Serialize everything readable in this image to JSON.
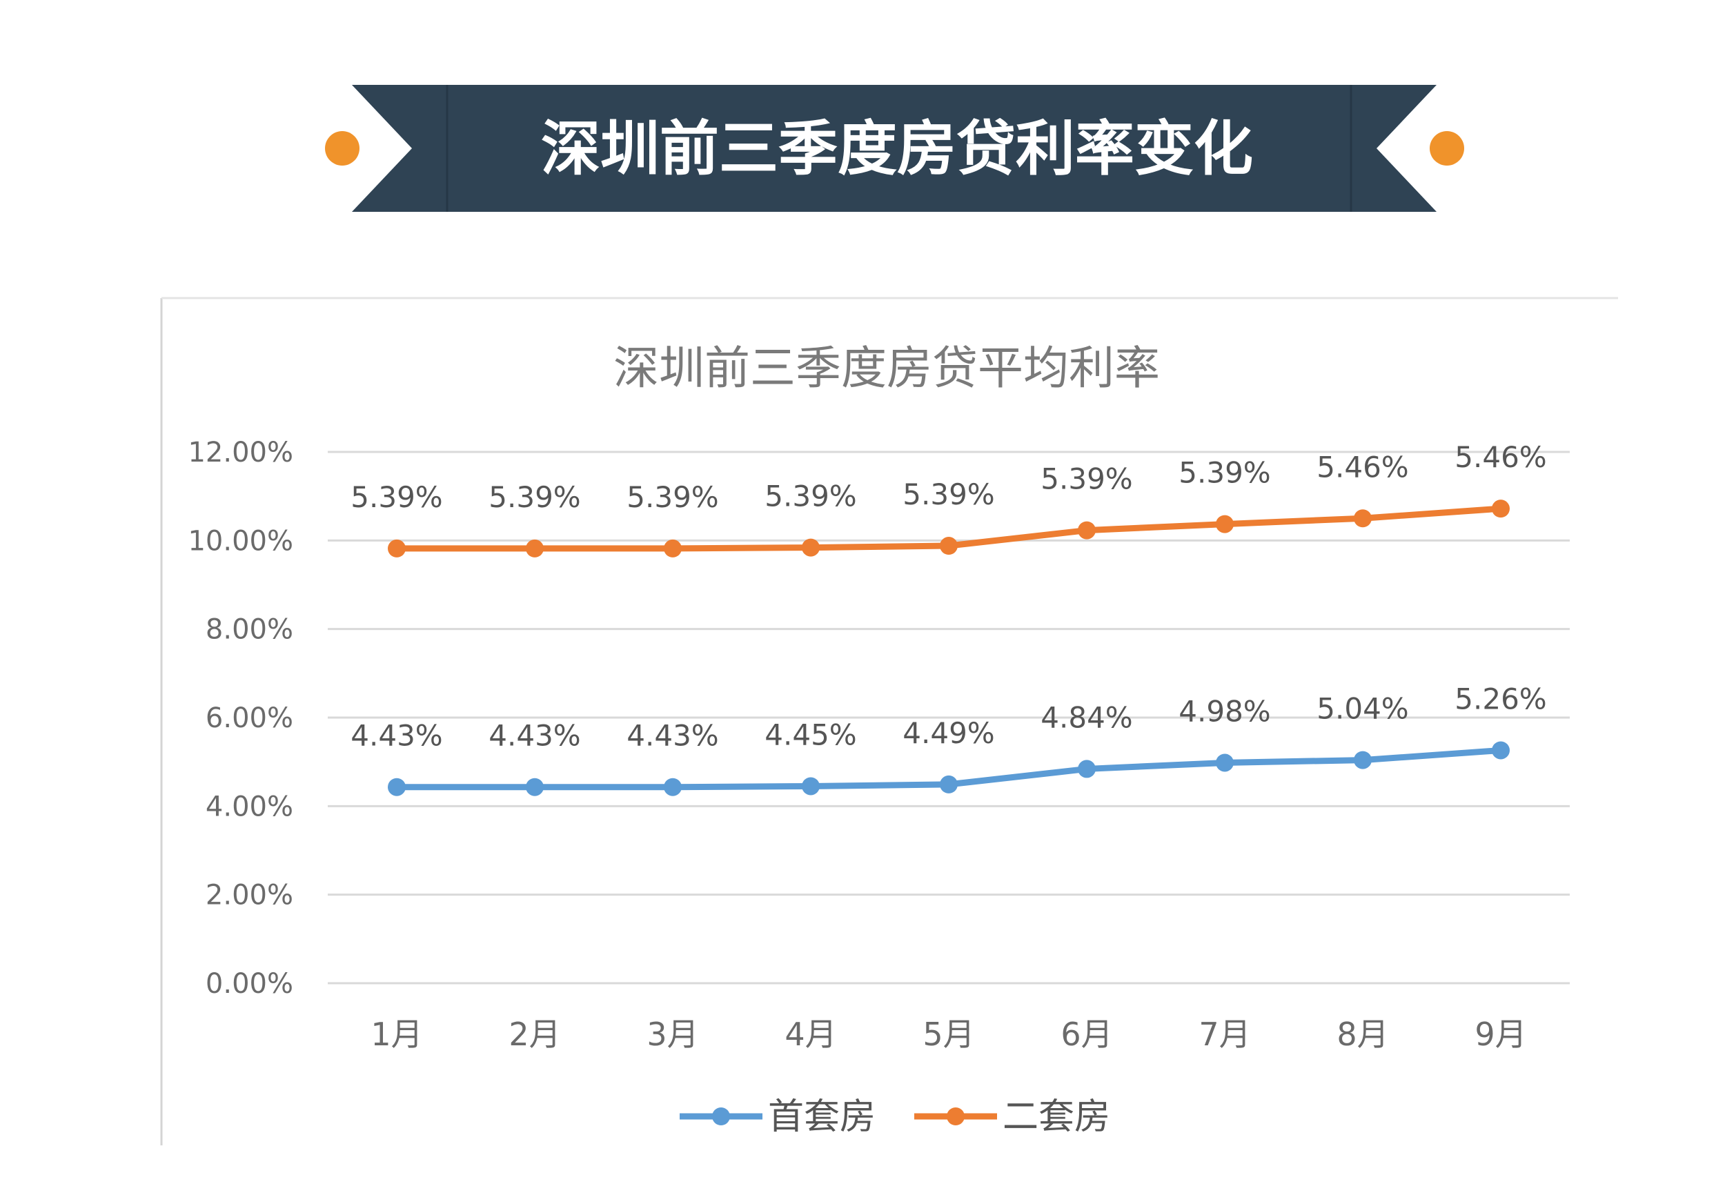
{
  "banner": {
    "title": "深圳前三季度房贷利率变化",
    "bg_color": "#2f4354",
    "dot_color": "#f0932b"
  },
  "chart_data": {
    "type": "line",
    "title": "深圳前三季度房贷平均利率",
    "categories": [
      "1月",
      "2月",
      "3月",
      "4月",
      "5月",
      "6月",
      "7月",
      "8月",
      "9月"
    ],
    "ylim": [
      0,
      12
    ],
    "yticks": [
      "0.00%",
      "2.00%",
      "4.00%",
      "6.00%",
      "8.00%",
      "10.00%",
      "12.00%"
    ],
    "grid": true,
    "legend_position": "bottom",
    "series": [
      {
        "name": "首套房",
        "color": "#5b9bd5",
        "values": [
          4.43,
          4.43,
          4.43,
          4.45,
          4.49,
          4.84,
          4.98,
          5.04,
          5.26
        ],
        "labels": [
          "4.43%",
          "4.43%",
          "4.43%",
          "4.45%",
          "4.49%",
          "4.84%",
          "4.98%",
          "5.04%",
          "5.26%"
        ]
      },
      {
        "name": "二套房",
        "color": "#ed7d31",
        "values": [
          9.82,
          9.82,
          9.82,
          9.84,
          9.88,
          10.23,
          10.37,
          10.5,
          10.72
        ],
        "labels": [
          "5.39%",
          "5.39%",
          "5.39%",
          "5.39%",
          "5.39%",
          "5.39%",
          "5.39%",
          "5.46%",
          "5.46%"
        ]
      }
    ]
  }
}
